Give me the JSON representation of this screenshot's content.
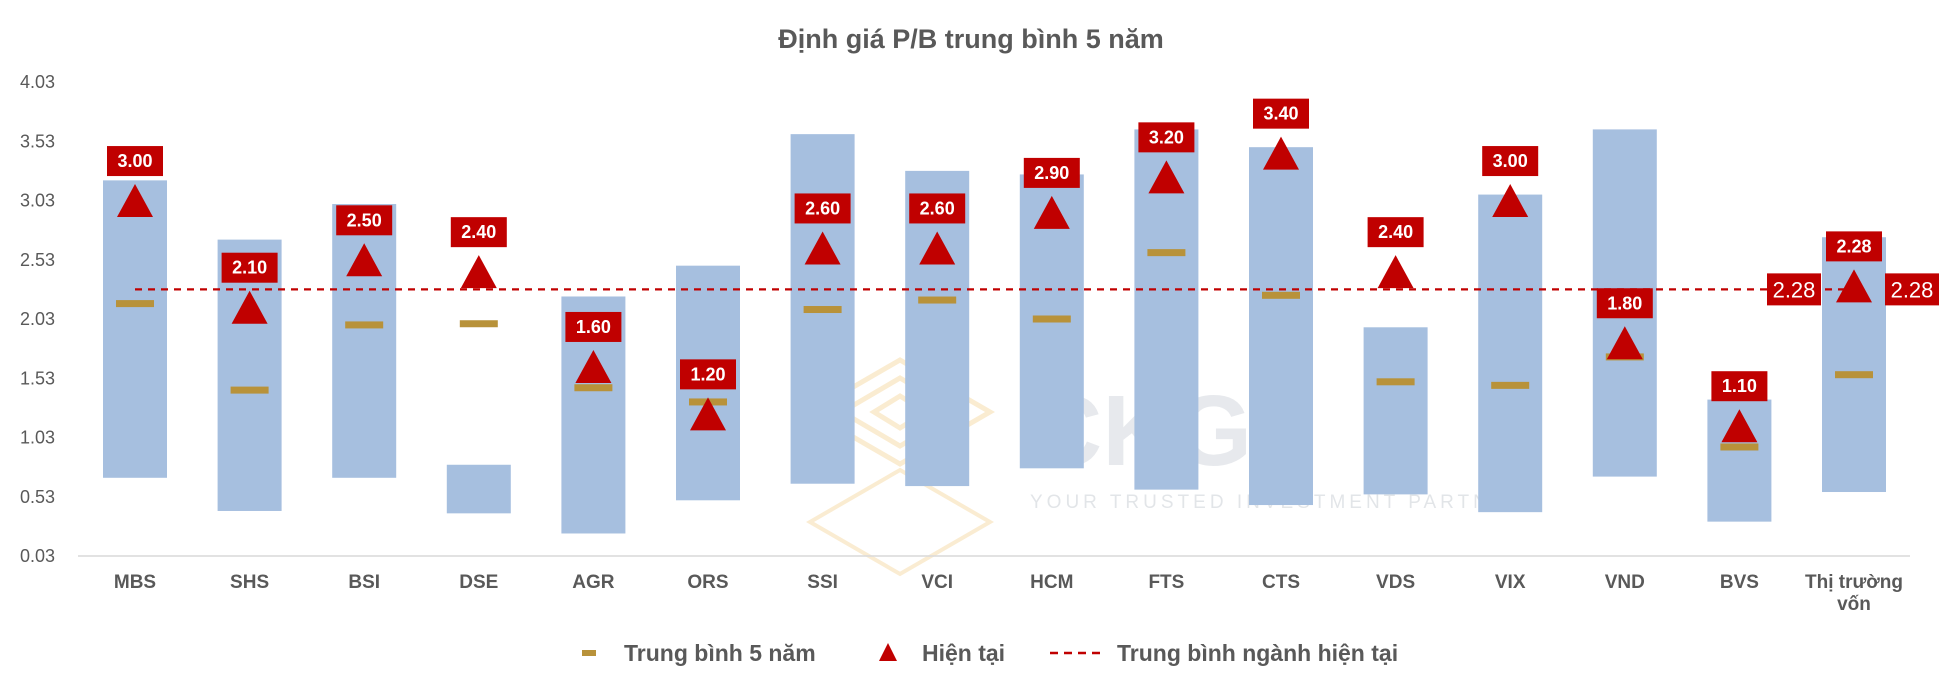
{
  "chart_data": {
    "type": "range-bar",
    "title": "Định giá P/B trung bình 5 năm",
    "yticks": [
      "4.03",
      "3.53",
      "3.03",
      "2.53",
      "2.03",
      "1.53",
      "1.03",
      "0.53",
      "0.03"
    ],
    "ylim": [
      0.03,
      4.03
    ],
    "grid": false,
    "categories": [
      "MBS",
      "SHS",
      "BSI",
      "DSE",
      "AGR",
      "ORS",
      "SSI",
      "VCI",
      "HCM",
      "FTS",
      "CTS",
      "VDS",
      "VIX",
      "VND",
      "BVS",
      "Thị trường vốn"
    ],
    "range_low": [
      0.69,
      0.41,
      0.69,
      0.39,
      0.22,
      0.5,
      0.64,
      0.62,
      0.77,
      0.59,
      0.46,
      0.55,
      0.4,
      0.7,
      0.32,
      0.57
    ],
    "range_high": [
      3.2,
      2.7,
      3.0,
      0.8,
      2.22,
      2.48,
      3.59,
      3.28,
      3.25,
      3.63,
      3.48,
      1.96,
      3.08,
      3.63,
      1.35,
      2.72
    ],
    "series": [
      {
        "name": "Trung bình 5 năm",
        "marker": "dash",
        "values": [
          2.16,
          1.43,
          1.98,
          1.99,
          1.45,
          1.33,
          2.11,
          2.19,
          2.03,
          2.59,
          2.23,
          1.5,
          1.47,
          1.71,
          0.95,
          1.56
        ]
      },
      {
        "name": "Hiện tại",
        "marker": "triangle",
        "values": [
          3.0,
          2.1,
          2.5,
          2.4,
          1.6,
          1.2,
          2.6,
          2.6,
          2.9,
          3.2,
          3.4,
          2.4,
          3.0,
          1.8,
          1.1,
          2.28
        ],
        "labels": [
          "3.00",
          "2.10",
          "2.50",
          "2.40",
          "1.60",
          "1.20",
          "2.60",
          "2.60",
          "2.90",
          "3.20",
          "3.40",
          "2.40",
          "3.00",
          "1.80",
          "1.10",
          "2.28"
        ]
      },
      {
        "name": "Trung bình ngành hiện tại",
        "marker": "dashed-line",
        "value": 2.28,
        "labels": [
          "2.28",
          "2.28"
        ]
      }
    ],
    "legend": "bottom",
    "colors": {
      "range": "#a6bfdf",
      "avg5": "#b8923a",
      "current": "#c00000",
      "reference": "#c00000",
      "axis_text": "#595959"
    }
  },
  "watermark": {
    "text": "CKG",
    "subtitle": "YOUR TRUSTED INVESTMENT PARTNER"
  }
}
